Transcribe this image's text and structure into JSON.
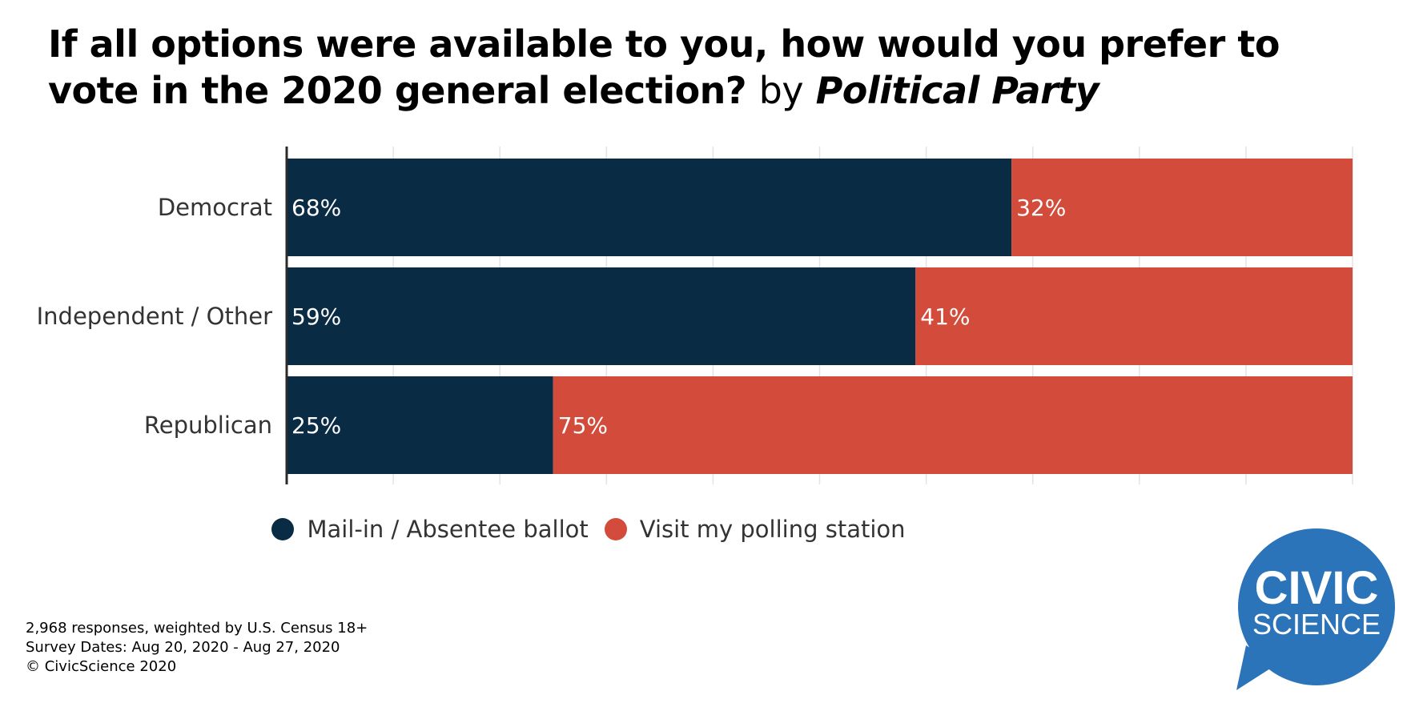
{
  "title": {
    "main": "If all options were available to you, how would you prefer to vote in the 2020 general election?",
    "by": "by",
    "dimension": "Political Party"
  },
  "chart_data": {
    "type": "bar",
    "orientation": "horizontal",
    "stacked": true,
    "categories": [
      "Democrat",
      "Independent / Other",
      "Republican"
    ],
    "series": [
      {
        "name": "Mail-in / Absentee ballot",
        "values": [
          68,
          59,
          25
        ],
        "labels": [
          "68%",
          "59%",
          "25%"
        ],
        "color": "#0a2b44"
      },
      {
        "name": "Visit my polling station",
        "values": [
          32,
          41,
          75
        ],
        "labels": [
          "32%",
          "41%",
          "75%"
        ],
        "color": "#d34b3a"
      }
    ],
    "xlim": [
      0,
      100
    ],
    "grid": true,
    "legend_position": "bottom"
  },
  "footnote": {
    "line1": "2,968 responses, weighted by U.S. Census 18+",
    "line2": "Survey Dates: Aug 20, 2020 - Aug 27, 2020",
    "line3": "© CivicScience 2020"
  },
  "logo": {
    "line1": "CIVIC",
    "line2": "SCIENCE",
    "color": "#2c74b9"
  }
}
